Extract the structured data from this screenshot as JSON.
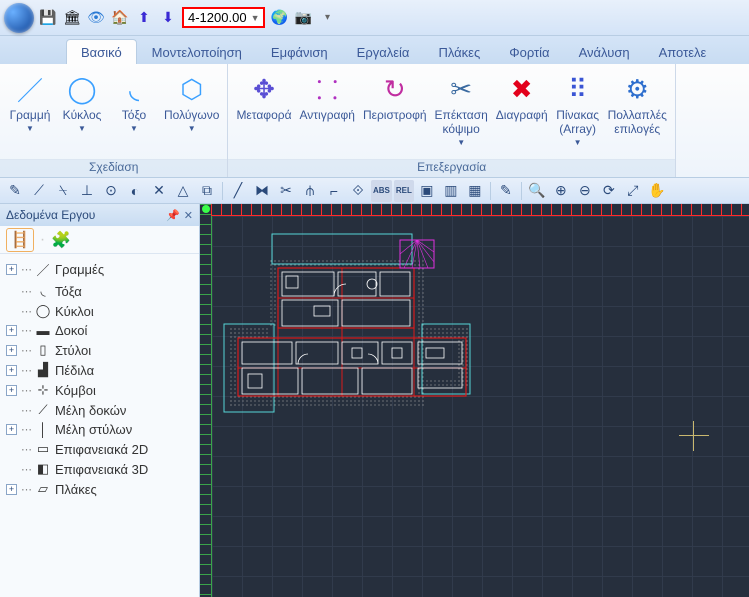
{
  "level_selector": {
    "value": "4-1200.00"
  },
  "quick_access_icons": [
    "💾",
    "🏛",
    "👁",
    "🏠",
    "⬆",
    "⬇",
    "—LEVELSEL—",
    "🌐",
    "📷",
    "▾"
  ],
  "ribbon": {
    "tabs": [
      {
        "id": "basic",
        "label": "Βασικό",
        "active": true
      },
      {
        "id": "modeling",
        "label": "Μοντελοποίηση"
      },
      {
        "id": "view",
        "label": "Εμφάνιση"
      },
      {
        "id": "tools",
        "label": "Εργαλεία"
      },
      {
        "id": "slabs",
        "label": "Πλάκες"
      },
      {
        "id": "loads",
        "label": "Φορτία"
      },
      {
        "id": "analysis",
        "label": "Ανάλυση"
      },
      {
        "id": "results",
        "label": "Αποτελε"
      }
    ],
    "groups": [
      {
        "id": "draw",
        "title": "Σχεδίαση",
        "items": [
          {
            "id": "line",
            "label": "Γραμμή",
            "glyph": "／",
            "color": "#3aa0ff",
            "dd": true
          },
          {
            "id": "circle",
            "label": "Κύκλος",
            "glyph": "◯",
            "color": "#3aa0ff",
            "dd": true
          },
          {
            "id": "arc",
            "label": "Τόξο",
            "glyph": "◟",
            "color": "#3aa0ff",
            "dd": true
          },
          {
            "id": "polygon",
            "label": "Πολύγωνο",
            "glyph": "⬡",
            "color": "#3aa0ff",
            "dd": true
          }
        ]
      },
      {
        "id": "edit",
        "title": "Επεξεργασία",
        "items": [
          {
            "id": "move",
            "label": "Μεταφορά",
            "glyph": "✥",
            "color": "#5a4fd4"
          },
          {
            "id": "copy",
            "label": "Αντιγραφή",
            "glyph": "⸬",
            "color": "#b030c0"
          },
          {
            "id": "rotate",
            "label": "Περιστροφή",
            "glyph": "↻",
            "color": "#c02da0"
          },
          {
            "id": "extend",
            "label": "Επέκταση\nκόψιμο",
            "glyph": "✂",
            "color": "#3a6aa0",
            "dd": true
          },
          {
            "id": "delete",
            "label": "Διαγραφή",
            "glyph": "✖",
            "color": "#e3001b"
          },
          {
            "id": "array",
            "label": "Πίνακας\n(Array)",
            "glyph": "⠿",
            "color": "#3a55d4",
            "dd": true
          },
          {
            "id": "multi",
            "label": "Πολλαπλές\nεπιλογές",
            "glyph": "⚙",
            "color": "#2e6fce"
          }
        ]
      }
    ]
  },
  "toolbar_row": [
    {
      "id": "t1",
      "glyph": "✎"
    },
    {
      "id": "t2",
      "glyph": "⟋"
    },
    {
      "id": "t3",
      "glyph": "⍀"
    },
    {
      "id": "t4",
      "glyph": "⊥"
    },
    {
      "id": "t5",
      "glyph": "⊙"
    },
    {
      "id": "t6",
      "glyph": "◐"
    },
    {
      "id": "t7",
      "glyph": "✕"
    },
    {
      "id": "t8",
      "glyph": "△"
    },
    {
      "id": "t9",
      "glyph": "⧉"
    },
    {
      "id": "sep"
    },
    {
      "id": "t10",
      "glyph": "╱"
    },
    {
      "id": "t11",
      "glyph": "⧓"
    },
    {
      "id": "t12",
      "glyph": "✂"
    },
    {
      "id": "t13",
      "glyph": "⫛"
    },
    {
      "id": "t14",
      "glyph": "⌐"
    },
    {
      "id": "t15",
      "glyph": "⟐"
    },
    {
      "id": "abs",
      "glyph": "ABS",
      "text": true
    },
    {
      "id": "rel",
      "glyph": "REL",
      "text": true
    },
    {
      "id": "t16",
      "glyph": "▣"
    },
    {
      "id": "t17",
      "glyph": "▥"
    },
    {
      "id": "t18",
      "glyph": "▦"
    },
    {
      "id": "sep"
    },
    {
      "id": "t19",
      "glyph": "✎"
    },
    {
      "id": "sep"
    },
    {
      "id": "z1",
      "glyph": "🔍"
    },
    {
      "id": "z2",
      "glyph": "⊕"
    },
    {
      "id": "z3",
      "glyph": "⊖"
    },
    {
      "id": "z4",
      "glyph": "⟳"
    },
    {
      "id": "z5",
      "glyph": "⤢"
    },
    {
      "id": "z6",
      "glyph": "✋"
    }
  ],
  "sidepanel": {
    "title": "Δεδομένα Εργου",
    "tab_icons": [
      "🪜",
      "🧩"
    ],
    "tree": [
      {
        "exp": "+",
        "icon": "／",
        "label": "Γραμμές"
      },
      {
        "exp": "",
        "icon": "◟",
        "label": "Τόξα"
      },
      {
        "exp": "",
        "icon": "◯",
        "label": "Κύκλοι"
      },
      {
        "exp": "+",
        "icon": "▬",
        "label": "Δοκοί"
      },
      {
        "exp": "+",
        "icon": "▯",
        "label": "Στύλοι"
      },
      {
        "exp": "+",
        "icon": "▟",
        "label": "Πέδιλα"
      },
      {
        "exp": "+",
        "icon": "⊹",
        "label": "Κόμβοι"
      },
      {
        "exp": "",
        "icon": "⟋",
        "label": "Μέλη δοκών"
      },
      {
        "exp": "+",
        "icon": "│",
        "label": "Μέλη στύλων"
      },
      {
        "exp": "",
        "icon": "▭",
        "label": "Επιφανειακά 2D"
      },
      {
        "exp": "",
        "icon": "◧",
        "label": "Επιφανειακά 3D"
      },
      {
        "exp": "+",
        "icon": "▱",
        "label": "Πλάκες"
      }
    ]
  },
  "canvas": {
    "bg": "#262f3d",
    "grid_color": "#313b4c",
    "grid_size": 30,
    "ruler_h_color": "#ff2a2a",
    "ruler_v_color": "#3aa34a",
    "cursor_color": "#c9b86f",
    "floorplan": {
      "outline_color_main": "#d81b1b",
      "outline_color_cyan": "#56d6d6",
      "wall_line_color": "#ffffff",
      "furniture_color": "#e8e8e8",
      "magenta_room": "#e030e0",
      "hatch_color": "#9a9a9a"
    }
  }
}
